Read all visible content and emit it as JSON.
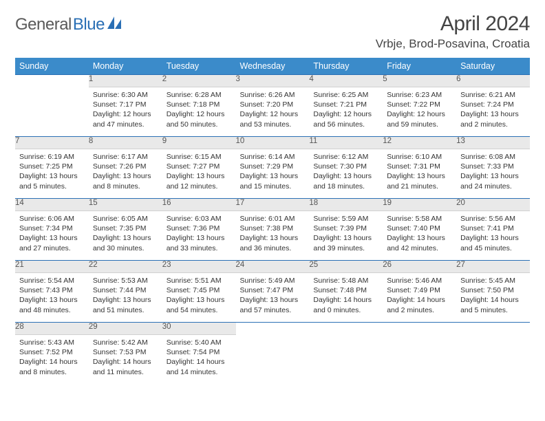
{
  "logo": {
    "text1": "General",
    "text2": "Blue"
  },
  "title": "April 2024",
  "location": "Vrbje, Brod-Posavina, Croatia",
  "colors": {
    "header_bg": "#3b8bca",
    "accent_line": "#2a6fb5",
    "daynum_bg": "#e9e9e9",
    "text": "#333333"
  },
  "weekdays": [
    "Sunday",
    "Monday",
    "Tuesday",
    "Wednesday",
    "Thursday",
    "Friday",
    "Saturday"
  ],
  "weeks": [
    [
      null,
      {
        "n": "1",
        "sr": "6:30 AM",
        "ss": "7:17 PM",
        "dl": "12 hours and 47 minutes."
      },
      {
        "n": "2",
        "sr": "6:28 AM",
        "ss": "7:18 PM",
        "dl": "12 hours and 50 minutes."
      },
      {
        "n": "3",
        "sr": "6:26 AM",
        "ss": "7:20 PM",
        "dl": "12 hours and 53 minutes."
      },
      {
        "n": "4",
        "sr": "6:25 AM",
        "ss": "7:21 PM",
        "dl": "12 hours and 56 minutes."
      },
      {
        "n": "5",
        "sr": "6:23 AM",
        "ss": "7:22 PM",
        "dl": "12 hours and 59 minutes."
      },
      {
        "n": "6",
        "sr": "6:21 AM",
        "ss": "7:24 PM",
        "dl": "13 hours and 2 minutes."
      }
    ],
    [
      {
        "n": "7",
        "sr": "6:19 AM",
        "ss": "7:25 PM",
        "dl": "13 hours and 5 minutes."
      },
      {
        "n": "8",
        "sr": "6:17 AM",
        "ss": "7:26 PM",
        "dl": "13 hours and 8 minutes."
      },
      {
        "n": "9",
        "sr": "6:15 AM",
        "ss": "7:27 PM",
        "dl": "13 hours and 12 minutes."
      },
      {
        "n": "10",
        "sr": "6:14 AM",
        "ss": "7:29 PM",
        "dl": "13 hours and 15 minutes."
      },
      {
        "n": "11",
        "sr": "6:12 AM",
        "ss": "7:30 PM",
        "dl": "13 hours and 18 minutes."
      },
      {
        "n": "12",
        "sr": "6:10 AM",
        "ss": "7:31 PM",
        "dl": "13 hours and 21 minutes."
      },
      {
        "n": "13",
        "sr": "6:08 AM",
        "ss": "7:33 PM",
        "dl": "13 hours and 24 minutes."
      }
    ],
    [
      {
        "n": "14",
        "sr": "6:06 AM",
        "ss": "7:34 PM",
        "dl": "13 hours and 27 minutes."
      },
      {
        "n": "15",
        "sr": "6:05 AM",
        "ss": "7:35 PM",
        "dl": "13 hours and 30 minutes."
      },
      {
        "n": "16",
        "sr": "6:03 AM",
        "ss": "7:36 PM",
        "dl": "13 hours and 33 minutes."
      },
      {
        "n": "17",
        "sr": "6:01 AM",
        "ss": "7:38 PM",
        "dl": "13 hours and 36 minutes."
      },
      {
        "n": "18",
        "sr": "5:59 AM",
        "ss": "7:39 PM",
        "dl": "13 hours and 39 minutes."
      },
      {
        "n": "19",
        "sr": "5:58 AM",
        "ss": "7:40 PM",
        "dl": "13 hours and 42 minutes."
      },
      {
        "n": "20",
        "sr": "5:56 AM",
        "ss": "7:41 PM",
        "dl": "13 hours and 45 minutes."
      }
    ],
    [
      {
        "n": "21",
        "sr": "5:54 AM",
        "ss": "7:43 PM",
        "dl": "13 hours and 48 minutes."
      },
      {
        "n": "22",
        "sr": "5:53 AM",
        "ss": "7:44 PM",
        "dl": "13 hours and 51 minutes."
      },
      {
        "n": "23",
        "sr": "5:51 AM",
        "ss": "7:45 PM",
        "dl": "13 hours and 54 minutes."
      },
      {
        "n": "24",
        "sr": "5:49 AM",
        "ss": "7:47 PM",
        "dl": "13 hours and 57 minutes."
      },
      {
        "n": "25",
        "sr": "5:48 AM",
        "ss": "7:48 PM",
        "dl": "14 hours and 0 minutes."
      },
      {
        "n": "26",
        "sr": "5:46 AM",
        "ss": "7:49 PM",
        "dl": "14 hours and 2 minutes."
      },
      {
        "n": "27",
        "sr": "5:45 AM",
        "ss": "7:50 PM",
        "dl": "14 hours and 5 minutes."
      }
    ],
    [
      {
        "n": "28",
        "sr": "5:43 AM",
        "ss": "7:52 PM",
        "dl": "14 hours and 8 minutes."
      },
      {
        "n": "29",
        "sr": "5:42 AM",
        "ss": "7:53 PM",
        "dl": "14 hours and 11 minutes."
      },
      {
        "n": "30",
        "sr": "5:40 AM",
        "ss": "7:54 PM",
        "dl": "14 hours and 14 minutes."
      },
      null,
      null,
      null,
      null
    ]
  ],
  "labels": {
    "sunrise": "Sunrise: ",
    "sunset": "Sunset: ",
    "daylight": "Daylight: "
  }
}
